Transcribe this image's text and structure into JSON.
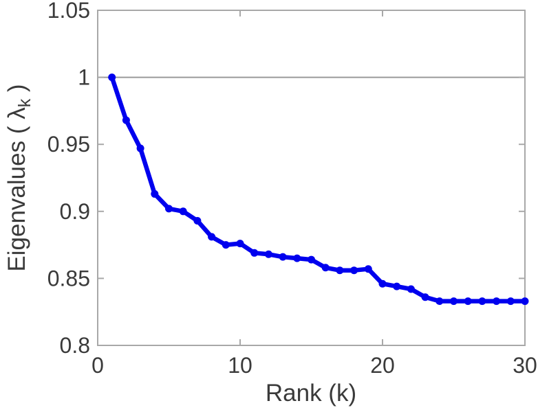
{
  "figure": {
    "background": "#ffffff"
  },
  "chart_data": {
    "type": "line",
    "title": "",
    "xlabel": "Rank (k)",
    "ylabel": "Eigenvalues ( λ_k )",
    "xlim": [
      0,
      30
    ],
    "ylim": [
      0.8,
      1.05
    ],
    "x_ticks": [
      0,
      10,
      20,
      30
    ],
    "x_tick_labels": [
      "0",
      "10",
      "20",
      "30"
    ],
    "y_ticks": [
      0.8,
      0.85,
      0.9,
      0.95,
      1.0,
      1.05
    ],
    "y_tick_labels": [
      "0.8",
      "0.85",
      "0.9",
      "0.95",
      "1",
      "1.05"
    ],
    "grid": false,
    "box": true,
    "legend": "none",
    "reference_line_y": 1.0,
    "series": [
      {
        "name": "eigenvalue-spectrum",
        "marker": "circle",
        "x": [
          1,
          2,
          3,
          4,
          5,
          6,
          7,
          8,
          9,
          10,
          11,
          12,
          13,
          14,
          15,
          16,
          17,
          18,
          19,
          20,
          21,
          22,
          23,
          24,
          25,
          26,
          27,
          28,
          29,
          30
        ],
        "y": [
          1.0,
          0.968,
          0.947,
          0.913,
          0.902,
          0.9,
          0.893,
          0.881,
          0.875,
          0.876,
          0.869,
          0.868,
          0.866,
          0.865,
          0.864,
          0.858,
          0.856,
          0.856,
          0.857,
          0.846,
          0.844,
          0.842,
          0.836,
          0.833,
          0.833,
          0.833,
          0.833,
          0.833,
          0.833,
          0.833
        ]
      }
    ],
    "colors": {
      "line": "#0000ee",
      "axis": "#a8a8a8",
      "reference_line": "#9a9a9a",
      "text": "#3a3a3a"
    }
  }
}
